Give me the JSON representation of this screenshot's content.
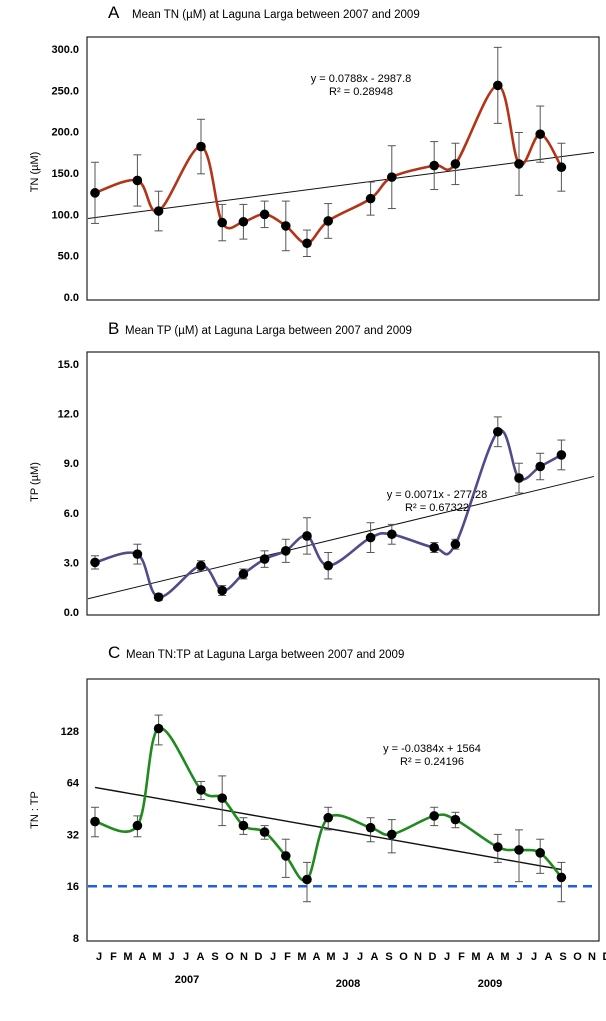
{
  "chart_data": [
    {
      "type": "line",
      "panel_letter": "A",
      "title": "Mean TN (µM) at Laguna Larga between 2007 and 2009",
      "ylabel": "TN (µM)",
      "ylim": [
        0,
        300
      ],
      "y_ticks": [
        "0.0",
        "50.0",
        "100.0",
        "150.0",
        "200.0",
        "250.0",
        "300.0"
      ],
      "y_tick_values": [
        0,
        50,
        100,
        150,
        200,
        250,
        300
      ],
      "x": [
        1,
        3,
        4,
        6,
        7,
        8,
        9,
        10,
        11,
        12,
        14,
        15,
        17,
        18,
        20,
        21,
        22,
        23
      ],
      "series": [
        {
          "values": [
            126,
            141,
            104,
            182,
            90,
            91,
            100,
            86,
            65,
            92,
            119,
            145,
            159,
            161,
            256,
            161,
            197,
            157
          ],
          "error": [
            37,
            31,
            24,
            33,
            22,
            21,
            16,
            30,
            16,
            21,
            20,
            38,
            29,
            25,
            46,
            38,
            34,
            29
          ],
          "line_color": "#b33417"
        }
      ],
      "trendline": {
        "equation": "y = 0.0788x - 2987.8",
        "r2": "R² = 0.28948",
        "y_start": 95,
        "y_end": 175
      }
    },
    {
      "type": "line",
      "panel_letter": "B",
      "title": "Mean TP (µM) at Laguna Larga between 2007 and 2009",
      "ylabel": "TP (µM)",
      "ylim": [
        0,
        15
      ],
      "y_ticks": [
        "0.0",
        "3.0",
        "6.0",
        "9.0",
        "12.0",
        "15.0"
      ],
      "y_tick_values": [
        0,
        3,
        6,
        9,
        12,
        15
      ],
      "x": [
        1,
        3,
        4,
        6,
        7,
        8,
        9,
        10,
        11,
        12,
        14,
        15,
        17,
        18,
        20,
        21,
        22,
        23
      ],
      "series": [
        {
          "values": [
            3.0,
            3.5,
            0.9,
            2.8,
            1.3,
            2.3,
            3.2,
            3.7,
            4.6,
            2.8,
            4.5,
            4.7,
            3.9,
            4.1,
            10.9,
            8.1,
            8.8,
            9.5
          ],
          "error": [
            0.4,
            0.6,
            0.2,
            0.3,
            0.3,
            0.3,
            0.5,
            0.7,
            1.1,
            0.8,
            0.9,
            0.6,
            0.3,
            0.3,
            0.9,
            0.9,
            0.8,
            0.9
          ],
          "line_color": "#4f4c8c"
        }
      ],
      "trendline": {
        "equation": "y = 0.0071x - 277.28",
        "r2": "R² = 0.67322",
        "y_start": 0.8,
        "y_end": 8.2
      }
    },
    {
      "type": "line",
      "panel_letter": "C",
      "title": "Mean TN:TP at Laguna Larga between 2007 and 2009",
      "ylabel": "TN : TP",
      "y_scale": "log2",
      "ylim": [
        8,
        256
      ],
      "y_ticks": [
        "8",
        "16",
        "32",
        "64",
        "128"
      ],
      "y_tick_values": [
        8,
        16,
        32,
        64,
        128
      ],
      "x": [
        1,
        3,
        4,
        6,
        7,
        8,
        9,
        10,
        11,
        12,
        14,
        15,
        17,
        18,
        20,
        21,
        22,
        23
      ],
      "series": [
        {
          "values": [
            38,
            36,
            132,
            58,
            52,
            36,
            33,
            24,
            17.5,
            40,
            35,
            32,
            41,
            39,
            27,
            26,
            25,
            18
          ],
          "error_low": [
            31,
            31,
            106,
            51,
            36,
            32,
            30,
            18,
            13,
            34,
            29,
            25,
            36,
            35,
            22,
            17,
            19,
            13
          ],
          "error_high": [
            46,
            41,
            158,
            65,
            70,
            40,
            36,
            30,
            22,
            46,
            40,
            39,
            46,
            43,
            32,
            34,
            30,
            22
          ],
          "line_color": "#1f8b1f"
        }
      ],
      "trendline": {
        "equation": "y = -0.0384x + 1564",
        "r2": "R² = 0.24196",
        "y_start": 60,
        "y_end": 20
      },
      "reference_line": {
        "value": 16,
        "color": "#1f5fe6",
        "style": "dashed"
      },
      "x_tick_labels": [
        "J",
        "F",
        "M",
        "A",
        "M",
        "J",
        "J",
        "A",
        "S",
        "O",
        "N",
        "D",
        "J",
        "F",
        "M",
        "A",
        "M",
        "J",
        "J",
        "A",
        "S",
        "O",
        "N",
        "D",
        "J",
        "F",
        "M",
        "A",
        "M",
        "J",
        "J",
        "A",
        "S",
        "O",
        "N",
        "D"
      ],
      "year_labels": [
        "2007",
        "2008",
        "2009"
      ]
    }
  ]
}
